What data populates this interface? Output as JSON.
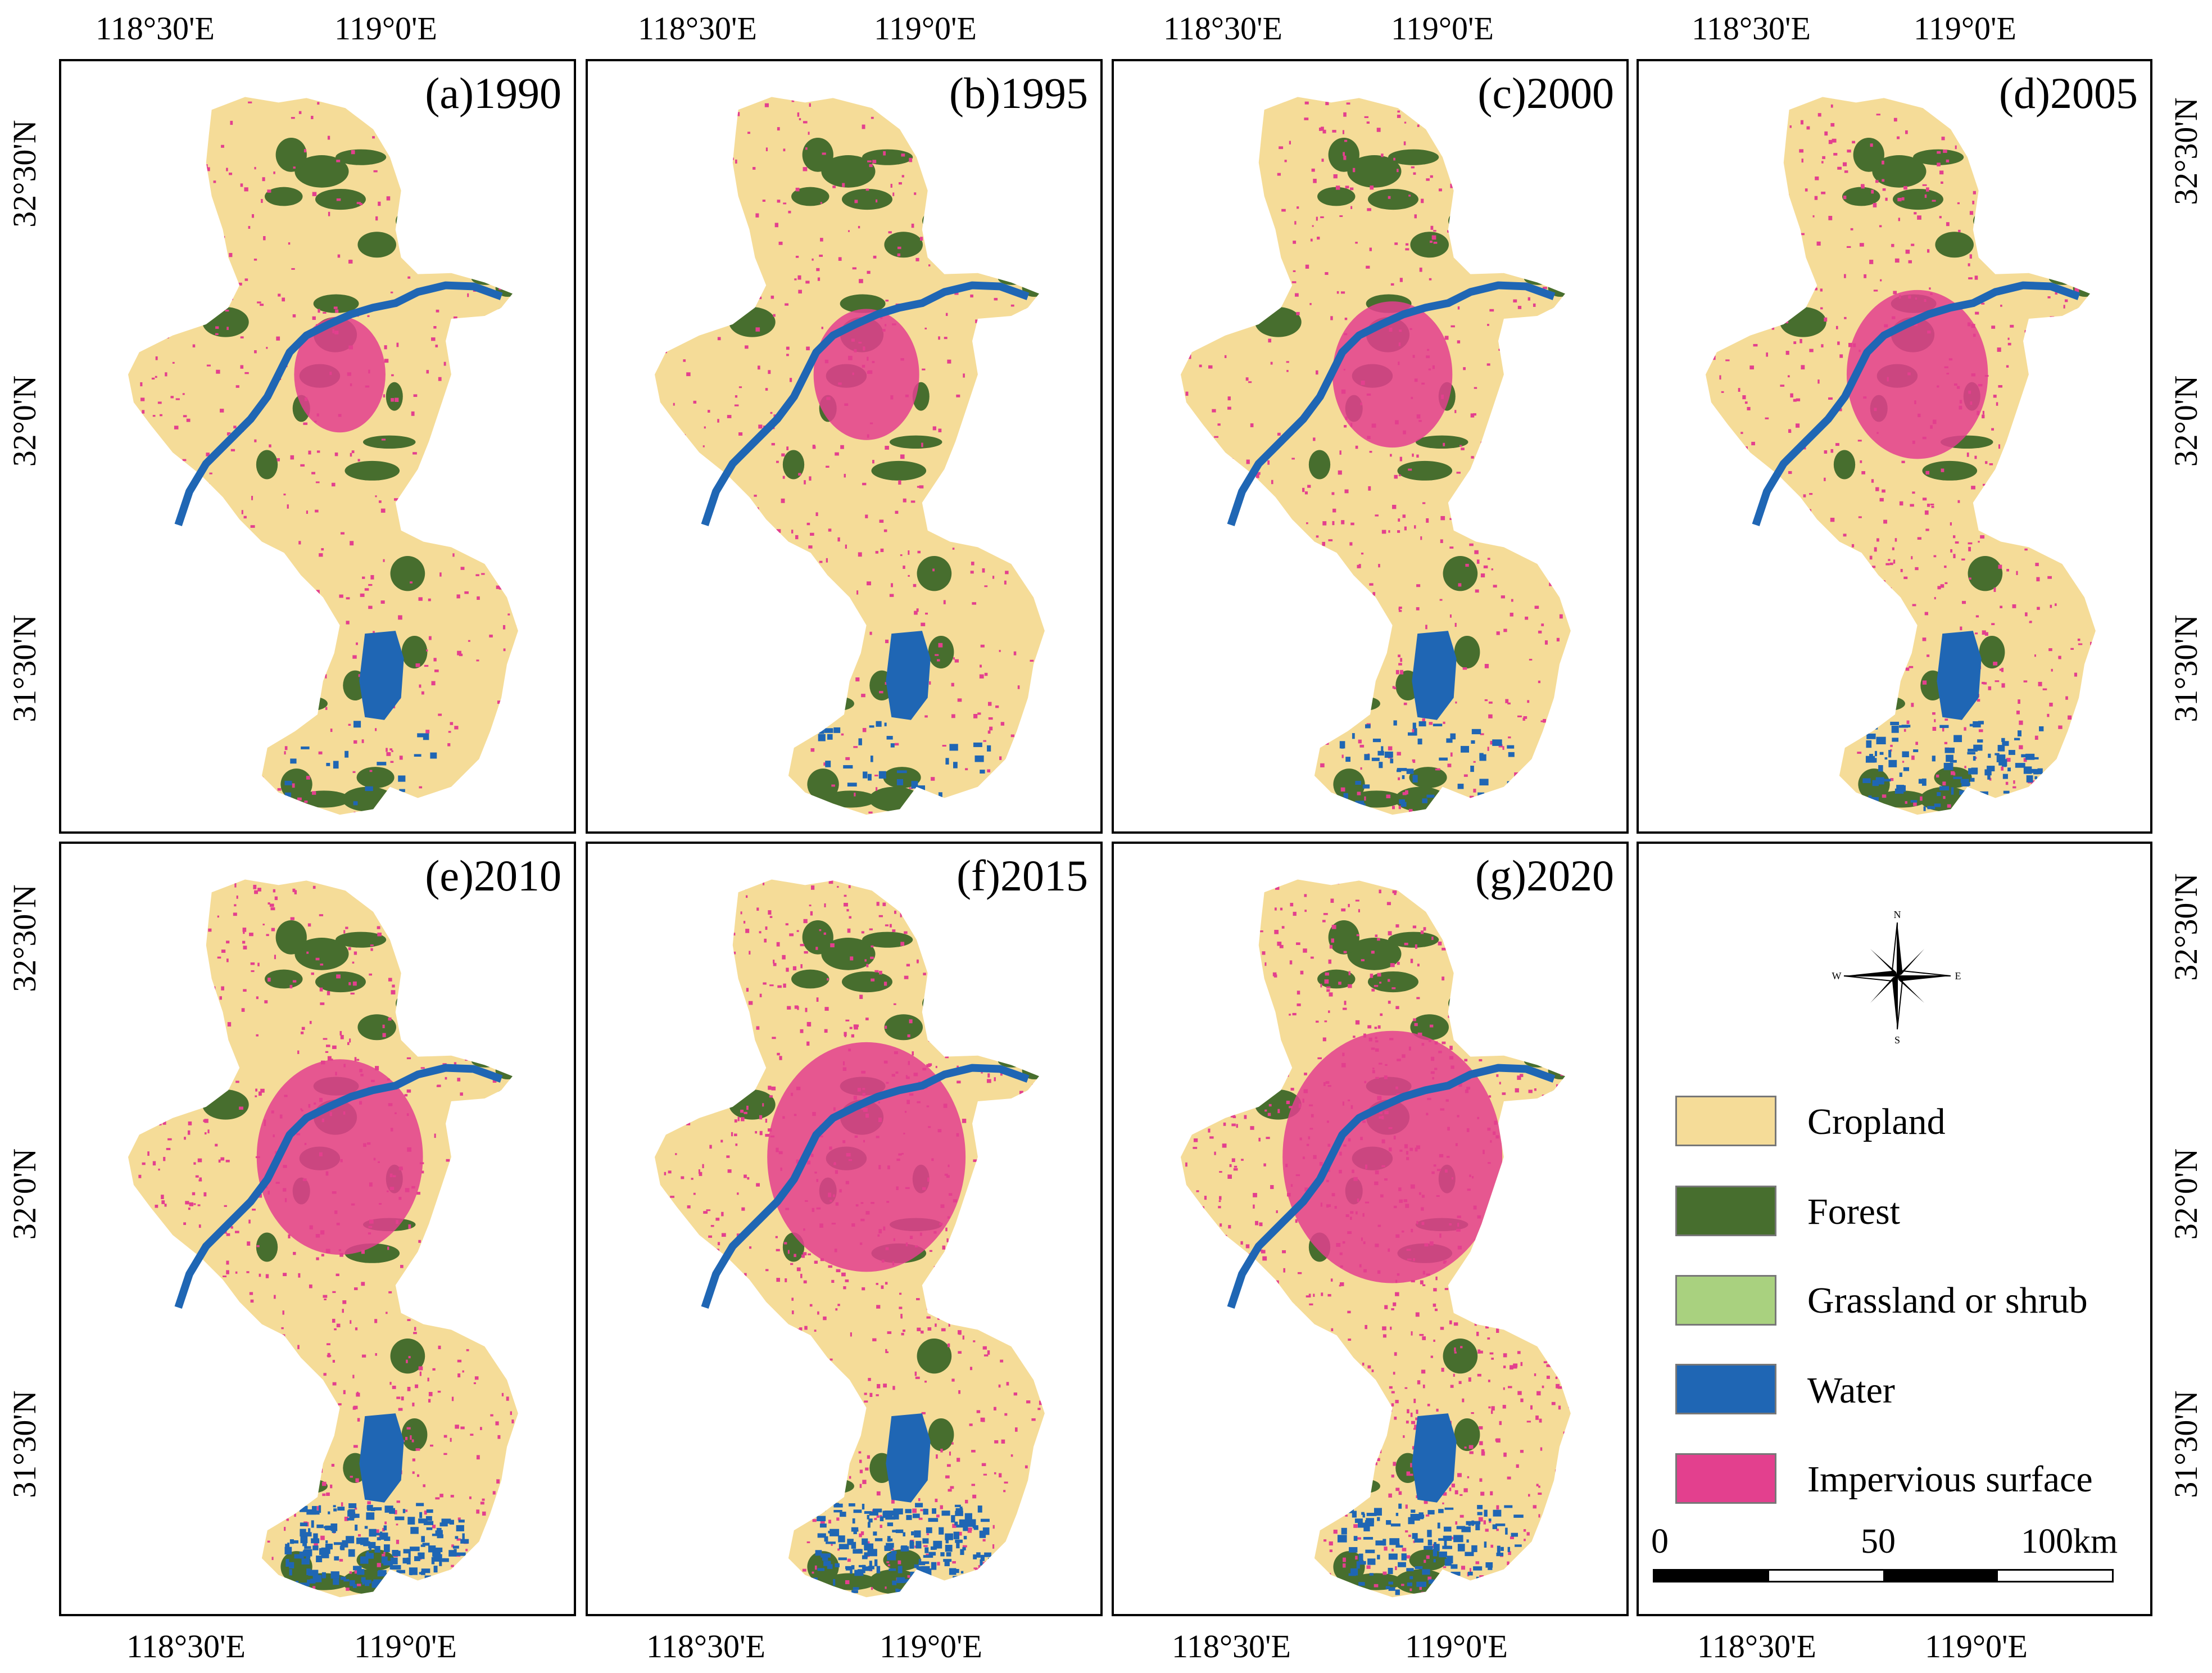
{
  "axis_labels": {
    "lon_left": "118°30'E",
    "lon_right": "119°0'E",
    "lat_top": "32°30'N",
    "lat_mid": "32°0'N",
    "lat_bottom": "31°30'N"
  },
  "panels": [
    {
      "title": "(a)1990",
      "urban": 0.2,
      "lake_water": 0.05
    },
    {
      "title": "(b)1995",
      "urban": 0.28,
      "lake_water": 0.1
    },
    {
      "title": "(c)2000",
      "urban": 0.36,
      "lake_water": 0.2
    },
    {
      "title": "(d)2005",
      "urban": 0.48,
      "lake_water": 0.45
    },
    {
      "title": "(e)2010",
      "urban": 0.62,
      "lake_water": 0.85
    },
    {
      "title": "(f)2015",
      "urban": 0.8,
      "lake_water": 0.8
    },
    {
      "title": "(g)2020",
      "urban": 0.92,
      "lake_water": 0.55
    }
  ],
  "compass": {
    "n": "N",
    "s": "S",
    "e": "E",
    "w": "W"
  },
  "legend": [
    {
      "label": "Cropland",
      "color": "#f5dc98"
    },
    {
      "label": "Forest",
      "color": "#476e2e"
    },
    {
      "label": "Grassland or shrub",
      "color": "#a9d17f"
    },
    {
      "label": "Water",
      "color": "#1f66b4"
    },
    {
      "label": "Impervious surface",
      "color": "#e3408e"
    }
  ],
  "scale_bar": {
    "labels": [
      "0",
      "50",
      "100km"
    ]
  }
}
